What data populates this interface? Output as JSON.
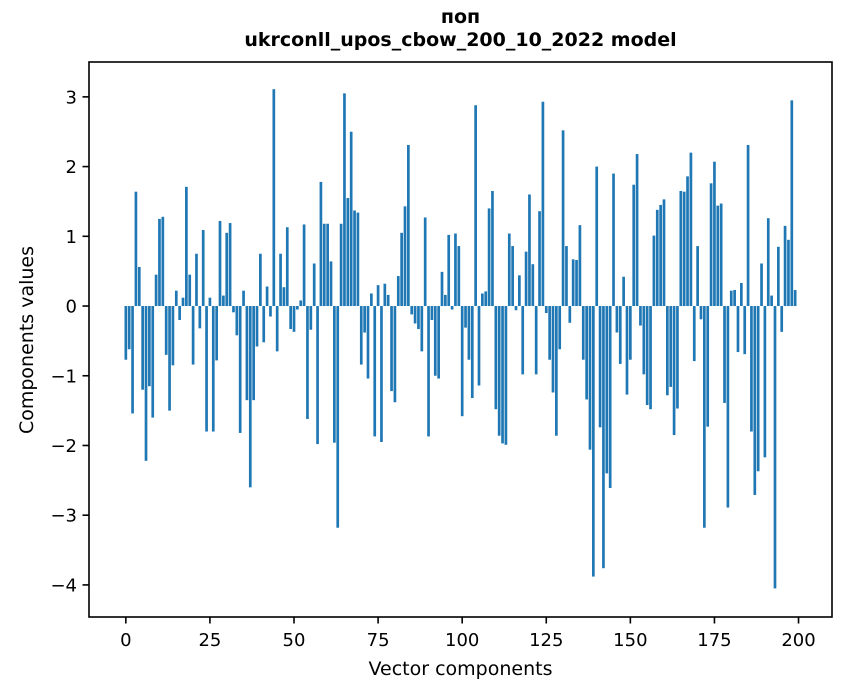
{
  "chart_data": {
    "type": "bar",
    "title_line1": "поп",
    "title_line2": "ukrconll_upos_cbow_200_10_2022 model",
    "xlabel": "Vector components",
    "ylabel": "Components values",
    "bar_color": "#1f77b4",
    "spine_color": "#000000",
    "grid": false,
    "legend": "none",
    "x_ticks": [
      0,
      25,
      50,
      75,
      100,
      125,
      150,
      175,
      200
    ],
    "y_ticks": [
      3,
      2,
      1,
      0,
      -1,
      -2,
      -3,
      -4
    ],
    "xlim": [
      -10.95,
      209.95
    ],
    "ylim": [
      -4.46,
      3.5
    ],
    "n_components": 200,
    "values": [
      -0.77,
      -0.62,
      -1.54,
      1.64,
      0.56,
      -1.2,
      -2.22,
      -1.15,
      -1.6,
      0.45,
      1.25,
      1.28,
      -0.7,
      -1.5,
      -0.85,
      0.22,
      -0.2,
      0.12,
      1.71,
      0.45,
      -0.84,
      0.75,
      -0.32,
      1.09,
      -1.8,
      0.12,
      -1.8,
      -0.78,
      1.22,
      0.15,
      1.05,
      1.19,
      -0.09,
      -0.42,
      -1.82,
      0.22,
      -1.35,
      -2.6,
      -1.35,
      -0.58,
      0.75,
      -0.52,
      0.28,
      -0.15,
      3.11,
      -0.65,
      0.75,
      0.27,
      1.13,
      -0.33,
      -0.37,
      -0.05,
      0.08,
      1.17,
      -1.62,
      -0.34,
      0.61,
      -1.98,
      1.78,
      1.18,
      1.18,
      0.64,
      -1.96,
      -3.18,
      1.18,
      3.05,
      1.55,
      2.5,
      1.37,
      1.34,
      -0.84,
      -0.38,
      -1.04,
      0.18,
      -1.87,
      0.3,
      -1.95,
      0.32,
      0.16,
      -1.22,
      -1.38,
      0.43,
      1.05,
      1.43,
      2.31,
      -0.12,
      -0.25,
      -0.33,
      -0.65,
      1.27,
      -1.87,
      -0.2,
      -1.0,
      -1.04,
      0.49,
      0.16,
      1.02,
      -0.05,
      1.04,
      0.86,
      -1.58,
      -0.31,
      -0.77,
      -1.32,
      2.88,
      -1.14,
      0.18,
      0.21,
      1.4,
      1.65,
      -1.48,
      -1.86,
      -1.97,
      -1.99,
      1.04,
      0.86,
      -0.06,
      0.44,
      -0.98,
      0.78,
      1.6,
      0.6,
      -0.98,
      1.36,
      2.93,
      -0.1,
      -0.77,
      -1.24,
      -1.86,
      -0.62,
      2.52,
      0.86,
      -0.24,
      0.67,
      0.66,
      1.16,
      -0.77,
      -1.34,
      -2.06,
      -3.88,
      2.0,
      -1.74,
      -3.76,
      -2.4,
      -2.61,
      1.9,
      -0.38,
      -0.83,
      0.42,
      -1.27,
      -0.77,
      1.74,
      2.18,
      -0.28,
      -0.98,
      -1.42,
      -1.48,
      1.01,
      1.38,
      1.45,
      1.53,
      -1.28,
      -1.16,
      -1.85,
      -1.47,
      1.65,
      1.64,
      1.86,
      2.2,
      -0.79,
      0.86,
      -0.19,
      -3.18,
      -1.73,
      1.76,
      2.07,
      1.44,
      1.47,
      -1.39,
      -2.89,
      0.22,
      0.23,
      -0.66,
      0.33,
      -0.69,
      2.31,
      -1.8,
      -2.71,
      -2.37,
      0.61,
      -2.17,
      1.26,
      0.15,
      -4.05,
      0.85,
      -0.37,
      1.15,
      0.95,
      2.95,
      0.23
    ]
  }
}
